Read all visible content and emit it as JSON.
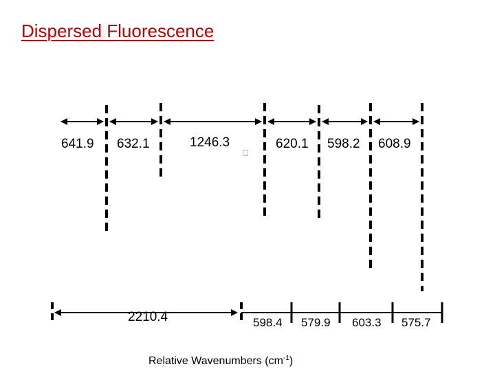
{
  "title": "Dispersed Fluorescence",
  "top_intervals": [
    "641.9",
    "632.1",
    "1246.3",
    "620.1",
    "598.2",
    "608.9"
  ],
  "bottom_intervals": [
    "2210.4",
    "598.4",
    "579.9",
    "603.3",
    "575.7"
  ],
  "axis_label": {
    "prefix": "Relative Wavenumbers (cm",
    "exponent": "-1",
    "suffix": ")"
  },
  "line_color": "#000000",
  "title_color": "#c00000"
}
